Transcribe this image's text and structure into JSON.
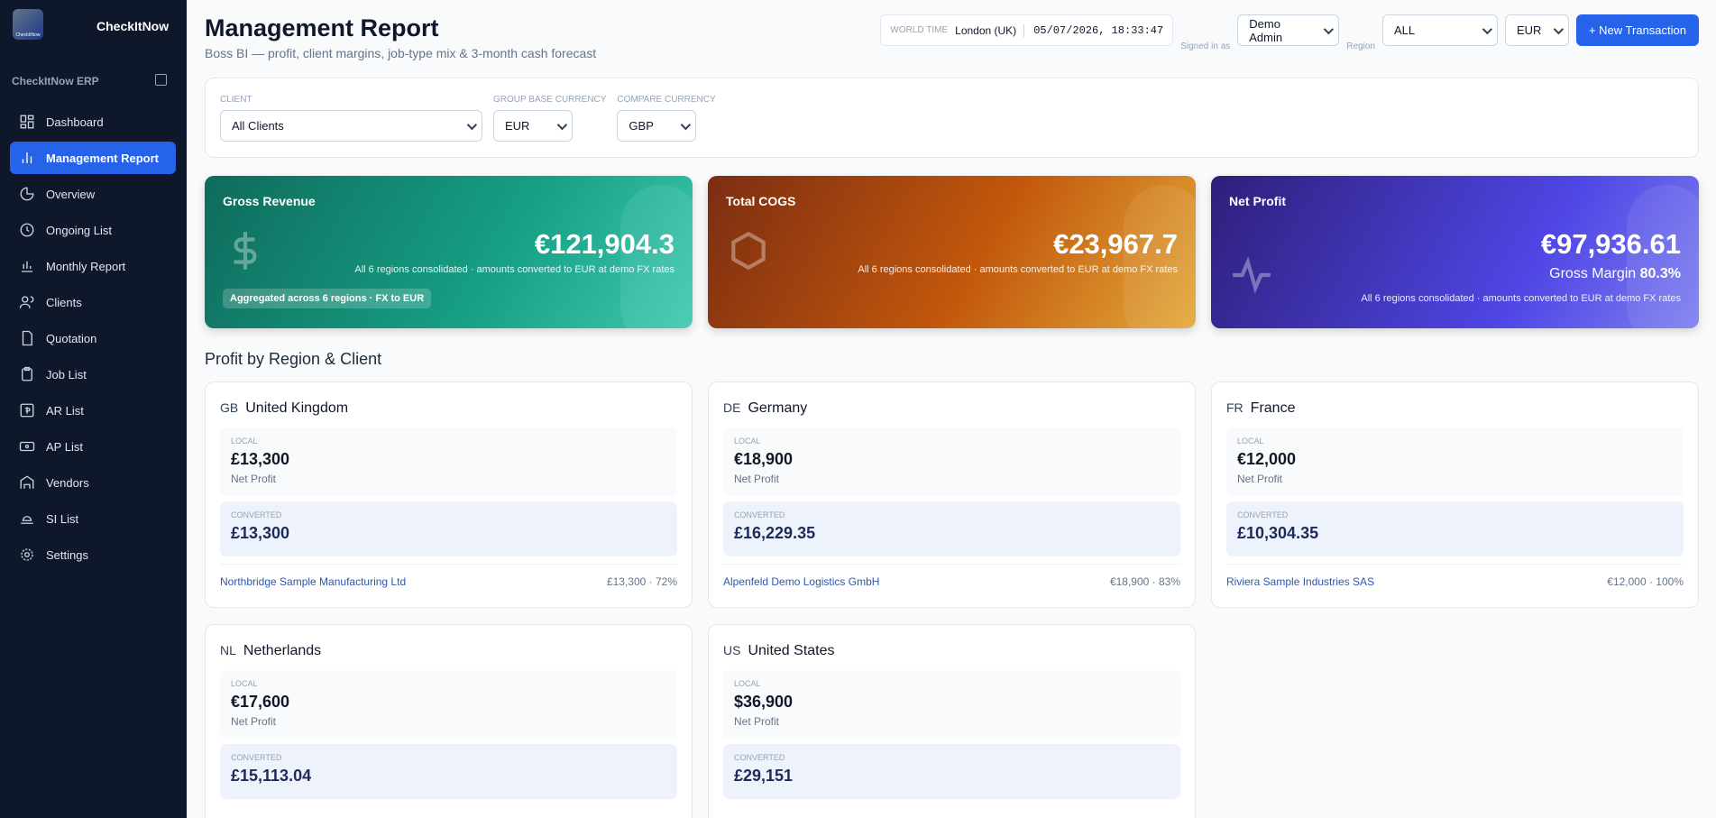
{
  "sidebar": {
    "logo_text": "CheckItNow",
    "brand": "CheckItNow",
    "section": "CheckItNow ERP",
    "nav": [
      "Dashboard",
      "Management Report",
      "Overview",
      "Ongoing List",
      "Monthly Report",
      "Clients",
      "Quotation",
      "Job List",
      "AR List",
      "AP List",
      "Vendors",
      "SI List",
      "Settings"
    ]
  },
  "header": {
    "title": "Management Report",
    "subtitle": "Boss BI — profit, client margins, job-type mix & 3-month cash forecast",
    "world_time_label": "WORLD TIME",
    "world_time_zone": "London (UK)",
    "world_time": "05/07/2026, 18:33:47",
    "signed_in_label": "Signed in as",
    "user": "Demo Admin",
    "region_label": "Region",
    "region": "ALL",
    "currency": "EUR",
    "new_button": "+ New Transaction"
  },
  "filters": [
    {
      "label": "CLIENT",
      "value": "All Clients"
    },
    {
      "label": "GROUP BASE CURRENCY",
      "value": "EUR"
    },
    {
      "label": "COMPARE CURRENCY",
      "value": "GBP"
    }
  ],
  "kpis": [
    {
      "title": "Gross Revenue",
      "value": "€121,904.3",
      "note": "All 6 regions consolidated · amounts converted to EUR at demo FX rates",
      "badge": "Aggregated across 6 regions · FX to EUR"
    },
    {
      "title": "Total COGS",
      "value": "€23,967.7",
      "note": "All 6 regions consolidated · amounts converted to EUR at demo FX rates"
    },
    {
      "title": "Net Profit",
      "value": "€97,936.61",
      "margin_label": "Gross Margin",
      "margin": "80.3%",
      "note": "All 6 regions consolidated · amounts converted to EUR at demo FX rates"
    }
  ],
  "section_title": "Profit by Region & Client",
  "regions": [
    {
      "code": "GB",
      "name": "United Kingdom",
      "local_label": "LOCAL",
      "local": "£13,300",
      "local_caption": "Net Profit",
      "converted_label": "CONVERTED",
      "converted": "£13,300",
      "client": "Northbridge Sample Manufacturing Ltd",
      "client_stats": "£13,300 · 72%"
    },
    {
      "code": "DE",
      "name": "Germany",
      "local_label": "LOCAL",
      "local": "€18,900",
      "local_caption": "Net Profit",
      "converted_label": "CONVERTED",
      "converted": "£16,229.35",
      "client": "Alpenfeld Demo Logistics GmbH",
      "client_stats": "€18,900 · 83%"
    },
    {
      "code": "FR",
      "name": "France",
      "local_label": "LOCAL",
      "local": "€12,000",
      "local_caption": "Net Profit",
      "converted_label": "CONVERTED",
      "converted": "£10,304.35",
      "client": "Riviera Sample Industries SAS",
      "client_stats": "€12,000 · 100%"
    },
    {
      "code": "NL",
      "name": "Netherlands",
      "local_label": "LOCAL",
      "local": "€17,600",
      "local_caption": "Net Profit",
      "converted_label": "CONVERTED",
      "converted": "£15,113.04"
    },
    {
      "code": "US",
      "name": "United States",
      "local_label": "LOCAL",
      "local": "$36,900",
      "local_caption": "Net Profit",
      "converted_label": "CONVERTED",
      "converted": "£29,151"
    }
  ]
}
